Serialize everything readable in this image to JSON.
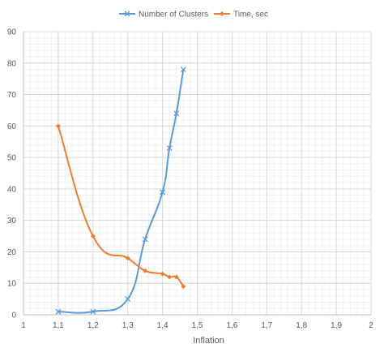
{
  "chart_data": {
    "type": "line",
    "xlabel": "Inflation",
    "ylabel": "",
    "xlim": [
      1,
      2
    ],
    "ylim": [
      0,
      90
    ],
    "x_ticks": [
      "1",
      "1,1",
      "1,2",
      "1,3",
      "1,4",
      "1,5",
      "1,6",
      "1,7",
      "1,8",
      "1,9",
      "2"
    ],
    "y_ticks": [
      "0",
      "10",
      "20",
      "30",
      "40",
      "50",
      "60",
      "70",
      "80",
      "90"
    ],
    "grid": true,
    "legend_position": "top",
    "series": [
      {
        "name": "Number of Clusters",
        "color": "#5B9BD5",
        "marker": "x",
        "x": [
          1.1,
          1.2,
          1.3,
          1.35,
          1.4,
          1.42,
          1.44,
          1.46
        ],
        "y": [
          1,
          1,
          5,
          24,
          39,
          53,
          64,
          78
        ]
      },
      {
        "name": "Time, sec",
        "color": "#ED7D31",
        "marker": "diamond",
        "x": [
          1.1,
          1.2,
          1.3,
          1.35,
          1.4,
          1.42,
          1.44,
          1.46
        ],
        "y": [
          60,
          25,
          18,
          14,
          13,
          12,
          12,
          9
        ]
      }
    ]
  }
}
